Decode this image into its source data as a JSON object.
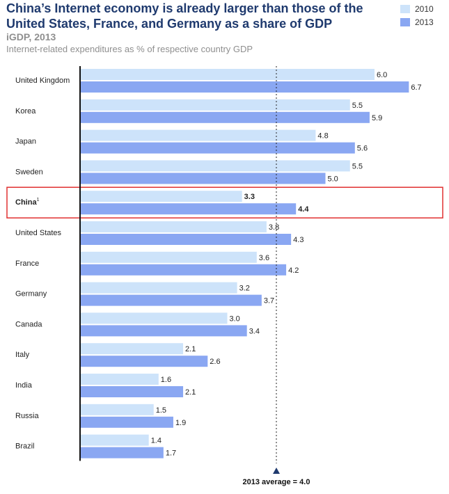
{
  "header": {
    "title": "China’s Internet economy is already larger than those of the United States, France, and Germany as a share of GDP",
    "subtitle": "iGDP, 2013",
    "description": "Internet-related expenditures as % of respective country GDP"
  },
  "colors": {
    "light": "#cde3fa",
    "dark": "#8aa7f2",
    "highlight": "#e03030"
  },
  "chart_data": {
    "type": "bar",
    "orientation": "horizontal",
    "categories": [
      "United Kingdom",
      "Korea",
      "Japan",
      "Sweden",
      "China",
      "United States",
      "France",
      "Germany",
      "Canada",
      "Italy",
      "India",
      "Russia",
      "Brazil"
    ],
    "highlight_category": "China",
    "footnote_marker": "1",
    "series": [
      {
        "name": "2010",
        "values": [
          6.0,
          5.5,
          4.8,
          5.5,
          3.3,
          3.8,
          3.6,
          3.2,
          3.0,
          2.1,
          1.6,
          1.5,
          1.4
        ]
      },
      {
        "name": "2013",
        "values": [
          6.7,
          5.9,
          5.6,
          5.0,
          4.4,
          4.3,
          4.2,
          3.7,
          3.4,
          2.6,
          2.1,
          1.9,
          1.7
        ]
      }
    ],
    "xlim": [
      0,
      7.5
    ],
    "reference_line": {
      "value": 4.0,
      "label": "2013 average = 4.0"
    },
    "legend": "top-right",
    "grid": false
  }
}
